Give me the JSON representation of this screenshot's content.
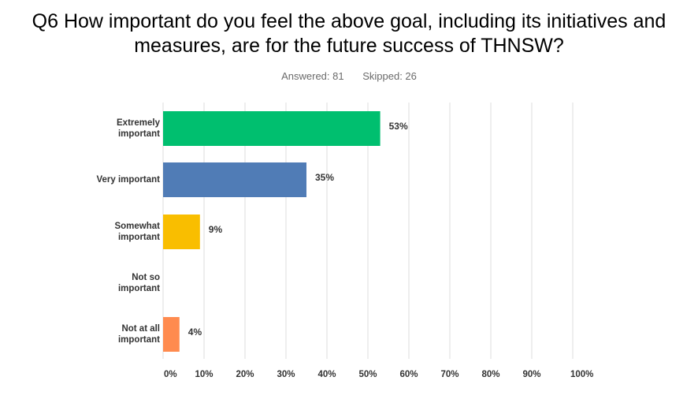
{
  "title_line1": "Q6 How important do you feel the above goal, including its initiatives and",
  "title_line2": "measures, are for the future success of THNSW?",
  "answered_text": "Answered: 81",
  "skipped_text": "Skipped: 26",
  "colors": {
    "grid": "#dcdcdc",
    "label": "#333333",
    "bar_1": "#00bf6f",
    "bar_2": "#507cb6",
    "bar_3": "#f9be00",
    "bar_4": "#6bc8cd",
    "bar_5": "#ff8b4f"
  },
  "chart_data": {
    "type": "bar",
    "orientation": "horizontal",
    "categories": [
      [
        "Extremely",
        "important"
      ],
      [
        "Very important"
      ],
      [
        "Somewhat",
        "important"
      ],
      [
        "Not so",
        "important"
      ],
      [
        "Not at all",
        "important"
      ]
    ],
    "values": [
      53,
      35,
      9,
      0,
      4
    ],
    "value_labels": [
      "53%",
      "35%",
      "9%",
      "",
      "4%"
    ],
    "xlim": [
      0,
      100
    ],
    "x_ticks": [
      "0%",
      "10%",
      "20%",
      "30%",
      "40%",
      "50%",
      "60%",
      "70%",
      "80%",
      "90%",
      "100%"
    ],
    "grid": true
  }
}
